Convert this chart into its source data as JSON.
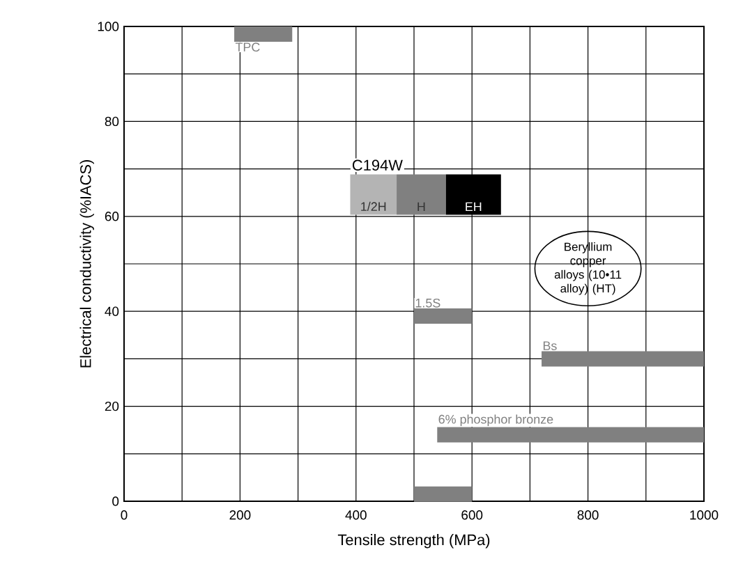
{
  "chart_data": {
    "type": "line",
    "xlabel": "Tensile strength (MPa)",
    "ylabel": "Electrical conductivity (%IACS)",
    "xlim": [
      0,
      1000
    ],
    "ylim": [
      0,
      100
    ],
    "xticks": [
      0,
      200,
      400,
      600,
      800,
      1000
    ],
    "yticks": [
      0,
      20,
      40,
      60,
      80,
      100
    ],
    "grid": true,
    "series": [
      {
        "name": "TPC",
        "color": "#808080",
        "x": [
          190,
          290
        ],
        "values": [
          98.4,
          98.4
        ]
      },
      {
        "name": "1/2H",
        "color": "#b4b4b4",
        "x": [
          390,
          470
        ],
        "values": [
          64.6,
          64.6
        ]
      },
      {
        "name": "H",
        "color": "#808080",
        "x": [
          470,
          555
        ],
        "values": [
          64.6,
          64.6
        ]
      },
      {
        "name": "EH",
        "color": "#000000",
        "x": [
          555,
          650
        ],
        "values": [
          64.6,
          64.6
        ]
      },
      {
        "name": "1.5S",
        "color": "#808080",
        "x": [
          500,
          600
        ],
        "values": [
          39,
          39
        ]
      },
      {
        "name": "Bs",
        "color": "#808080",
        "x": [
          720,
          1000
        ],
        "values": [
          30,
          30
        ]
      },
      {
        "name": "6% phosphor bronze",
        "color": "#808080",
        "x": [
          540,
          1000
        ],
        "values": [
          14,
          14
        ]
      },
      {
        "color": "#808080",
        "x": [
          500,
          600
        ],
        "values": [
          1.5,
          1.5
        ]
      }
    ],
    "annotations": [
      "C194W",
      "Beryllium copper alloys (10•11 alloy) (HT)"
    ]
  }
}
